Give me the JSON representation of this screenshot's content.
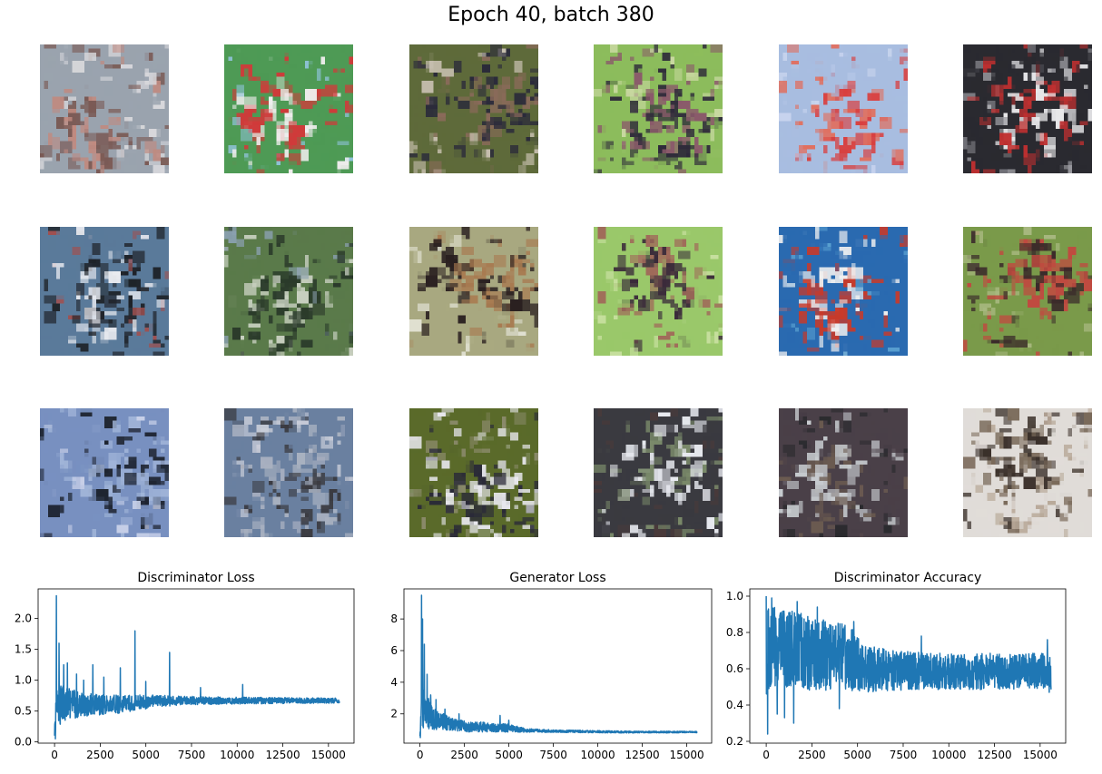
{
  "suptitle": "Epoch 40, batch 380",
  "sample_grid": {
    "rows": 3,
    "cols": 6,
    "tiles": [
      {
        "bg": "#9aa3ae",
        "c1": "#7a5a55",
        "c2": "#c08a80",
        "c3": "#d8d8dc"
      },
      {
        "bg": "#4e9a55",
        "c1": "#d03a3a",
        "c2": "#f0eeee",
        "c3": "#8fc2d8"
      },
      {
        "bg": "#5e6a3a",
        "c1": "#2a2a3a",
        "c2": "#8a6a5a",
        "c3": "#c8c0b0"
      },
      {
        "bg": "#8cbc5c",
        "c1": "#2e2a3a",
        "c2": "#8a5a6a",
        "c3": "#c8d8a0"
      },
      {
        "bg": "#a8bde0",
        "c1": "#d84040",
        "c2": "#e07060",
        "c3": "#c8d4ee"
      },
      {
        "bg": "#2a2a30",
        "c1": "#e8e8ea",
        "c2": "#c03030",
        "c3": "#8a8a90"
      },
      {
        "bg": "#5a7a9a",
        "c1": "#1e2228",
        "c2": "#e8eaf0",
        "c3": "#a05050"
      },
      {
        "bg": "#5a7a4a",
        "c1": "#2a3a2a",
        "c2": "#c8d0c0",
        "c3": "#8aa0b0"
      },
      {
        "bg": "#a8a880",
        "c1": "#a87a50",
        "c2": "#2a2020",
        "c3": "#e0e0d0"
      },
      {
        "bg": "#9ac86a",
        "c1": "#3a2a3a",
        "c2": "#a06a5a",
        "c3": "#c8e0a0"
      },
      {
        "bg": "#2a6ab0",
        "c1": "#c83a2a",
        "c2": "#f0f0f0",
        "c3": "#5aa0d0"
      },
      {
        "bg": "#7a9a4a",
        "c1": "#c04a40",
        "c2": "#3a2a2a",
        "c3": "#a8b880"
      },
      {
        "bg": "#7890c0",
        "c1": "#1e2430",
        "c2": "#a0b4d8",
        "c3": "#c8d0e8"
      },
      {
        "bg": "#6a80a0",
        "c1": "#3a3a40",
        "c2": "#a8b0c0",
        "c3": "#c8ccd8"
      },
      {
        "bg": "#5a6a2a",
        "c1": "#e8e8ee",
        "c2": "#2a2a38",
        "c3": "#8a8a6a"
      },
      {
        "bg": "#3a3a40",
        "c1": "#e8eaf0",
        "c2": "#7a8a6a",
        "c3": "#4a3a3a"
      },
      {
        "bg": "#4a4048",
        "c1": "#c8ccd0",
        "c2": "#6a5a50",
        "c3": "#2a2a2e"
      },
      {
        "bg": "#e0dcd8",
        "c1": "#3a302a",
        "c2": "#7a6a5a",
        "c3": "#b8a898"
      }
    ]
  },
  "chart_data": [
    {
      "type": "line",
      "title": "Discriminator Loss",
      "xlabel": "",
      "ylabel": "",
      "xlim": [
        -900,
        16400
      ],
      "ylim": [
        -0.02,
        2.48
      ],
      "xticks": [
        0,
        2500,
        5000,
        7500,
        10000,
        12500,
        15000
      ],
      "yticks": [
        0.0,
        0.5,
        1.0,
        1.5,
        2.0
      ],
      "ytick_labels": [
        "0.0",
        "0.5",
        "1.0",
        "1.5",
        "2.0"
      ],
      "grid": false,
      "color": "#1f77b4",
      "n_points": 15600,
      "envelope": {
        "x": [
          0,
          150,
          400,
          800,
          1500,
          2500,
          4000,
          5500,
          7000,
          9000,
          12000,
          15600
        ],
        "mean": [
          0.4,
          0.55,
          0.62,
          0.62,
          0.6,
          0.6,
          0.62,
          0.66,
          0.67,
          0.67,
          0.67,
          0.67
        ],
        "half_width": [
          0.3,
          0.35,
          0.3,
          0.25,
          0.2,
          0.17,
          0.14,
          0.1,
          0.07,
          0.06,
          0.05,
          0.04
        ]
      },
      "spikes": [
        {
          "x": 50,
          "y": 0.05
        },
        {
          "x": 100,
          "y": 2.37
        },
        {
          "x": 250,
          "y": 1.6
        },
        {
          "x": 500,
          "y": 1.25
        },
        {
          "x": 700,
          "y": 1.28
        },
        {
          "x": 1200,
          "y": 1.1
        },
        {
          "x": 1600,
          "y": 1.0
        },
        {
          "x": 2100,
          "y": 1.25
        },
        {
          "x": 2700,
          "y": 1.05
        },
        {
          "x": 3600,
          "y": 1.2
        },
        {
          "x": 4400,
          "y": 1.8
        },
        {
          "x": 5000,
          "y": 0.98
        },
        {
          "x": 6300,
          "y": 1.45
        },
        {
          "x": 8000,
          "y": 0.88
        },
        {
          "x": 10300,
          "y": 0.93
        }
      ]
    },
    {
      "type": "line",
      "title": "Generator Loss",
      "xlabel": "",
      "ylabel": "",
      "xlim": [
        -900,
        16400
      ],
      "ylim": [
        0.15,
        9.9
      ],
      "xticks": [
        0,
        2500,
        5000,
        7500,
        10000,
        12500,
        15000
      ],
      "yticks": [
        2,
        4,
        6,
        8
      ],
      "ytick_labels": [
        "2",
        "4",
        "6",
        "8"
      ],
      "grid": false,
      "color": "#1f77b4",
      "n_points": 15600,
      "envelope": {
        "x": [
          0,
          100,
          300,
          600,
          1000,
          1600,
          2500,
          4000,
          5000,
          6000,
          8000,
          12000,
          15600
        ],
        "mean": [
          1.2,
          2.5,
          2.2,
          1.9,
          1.6,
          1.4,
          1.2,
          1.15,
          1.1,
          0.95,
          0.9,
          0.85,
          0.85
        ],
        "half_width": [
          0.6,
          1.6,
          1.2,
          0.9,
          0.6,
          0.45,
          0.35,
          0.3,
          0.25,
          0.12,
          0.08,
          0.06,
          0.05
        ]
      },
      "spikes": [
        {
          "x": 20,
          "y": 0.5
        },
        {
          "x": 90,
          "y": 9.5
        },
        {
          "x": 150,
          "y": 8.0
        },
        {
          "x": 250,
          "y": 6.4
        },
        {
          "x": 400,
          "y": 4.5
        },
        {
          "x": 600,
          "y": 3.2
        },
        {
          "x": 900,
          "y": 2.9
        },
        {
          "x": 1400,
          "y": 2.3
        },
        {
          "x": 2200,
          "y": 2.0
        },
        {
          "x": 4500,
          "y": 1.9
        },
        {
          "x": 5000,
          "y": 1.6
        }
      ]
    },
    {
      "type": "line",
      "title": "Discriminator Accuracy",
      "xlabel": "",
      "ylabel": "",
      "xlim": [
        -900,
        16400
      ],
      "ylim": [
        0.19,
        1.04
      ],
      "xticks": [
        0,
        2500,
        5000,
        7500,
        10000,
        12500,
        15000
      ],
      "yticks": [
        0.2,
        0.4,
        0.6,
        0.8,
        1.0
      ],
      "ytick_labels": [
        "0.2",
        "0.4",
        "0.6",
        "0.8",
        "1.0"
      ],
      "grid": false,
      "color": "#1f77b4",
      "n_points": 15600,
      "envelope": {
        "x": [
          0,
          500,
          1500,
          3000,
          4500,
          5500,
          7000,
          9000,
          12000,
          15600
        ],
        "mean": [
          0.72,
          0.73,
          0.7,
          0.68,
          0.66,
          0.6,
          0.59,
          0.585,
          0.585,
          0.585
        ],
        "half_width": [
          0.27,
          0.23,
          0.22,
          0.2,
          0.18,
          0.13,
          0.11,
          0.1,
          0.1,
          0.1
        ]
      },
      "spikes": [
        {
          "x": 0,
          "y": 1.0
        },
        {
          "x": 80,
          "y": 0.24
        },
        {
          "x": 300,
          "y": 0.99
        },
        {
          "x": 600,
          "y": 0.35
        },
        {
          "x": 1000,
          "y": 0.33
        },
        {
          "x": 1500,
          "y": 0.3
        },
        {
          "x": 1700,
          "y": 0.97
        },
        {
          "x": 2800,
          "y": 0.94
        },
        {
          "x": 4000,
          "y": 0.38
        },
        {
          "x": 4800,
          "y": 0.86
        },
        {
          "x": 8500,
          "y": 0.78
        },
        {
          "x": 15400,
          "y": 0.76
        },
        {
          "x": 15500,
          "y": 0.47
        }
      ]
    }
  ]
}
